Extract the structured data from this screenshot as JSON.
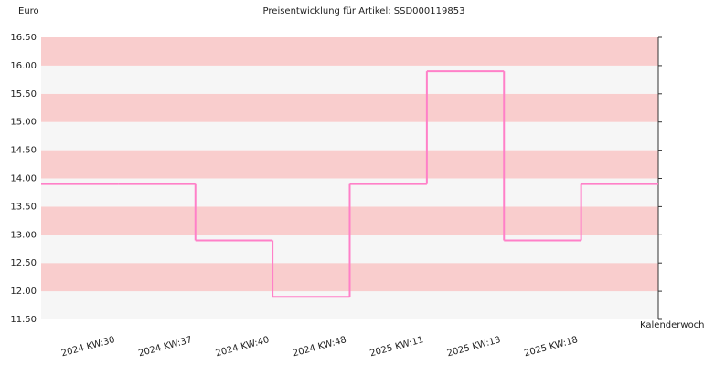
{
  "chart_data": {
    "type": "step",
    "title": "Preisentwicklung für Artikel: SSD000119853",
    "y_label": "Euro",
    "x_label": "Kalenderwoche",
    "categories": [
      "2024 KW:30",
      "2024 KW:37",
      "2024 KW:40",
      "2024 KW:48",
      "2025 KW:11",
      "2025 KW:13",
      "2025 KW:18",
      null
    ],
    "values": [
      13.9,
      13.9,
      12.9,
      11.9,
      13.9,
      15.9,
      12.9,
      13.9
    ],
    "color": "#ff80c8",
    "band_colors": [
      "#f6f6f6",
      "#f9cdcd"
    ],
    "ylim": [
      11.5,
      16.5
    ],
    "yticks": [
      {
        "value": 11.5,
        "label": "11.50"
      },
      {
        "value": 12,
        "label": "12.00"
      },
      {
        "value": 12.5,
        "label": "12.50"
      },
      {
        "value": 13,
        "label": "13.00"
      },
      {
        "value": 13.5,
        "label": "13.50"
      },
      {
        "value": 14,
        "label": "14.00"
      },
      {
        "value": 14.5,
        "label": "14.50"
      },
      {
        "value": 15,
        "label": "15.00"
      },
      {
        "value": 15.5,
        "label": "15.50"
      },
      {
        "value": 16,
        "label": "16.00"
      },
      {
        "value": 16.5,
        "label": "16.50"
      }
    ]
  }
}
